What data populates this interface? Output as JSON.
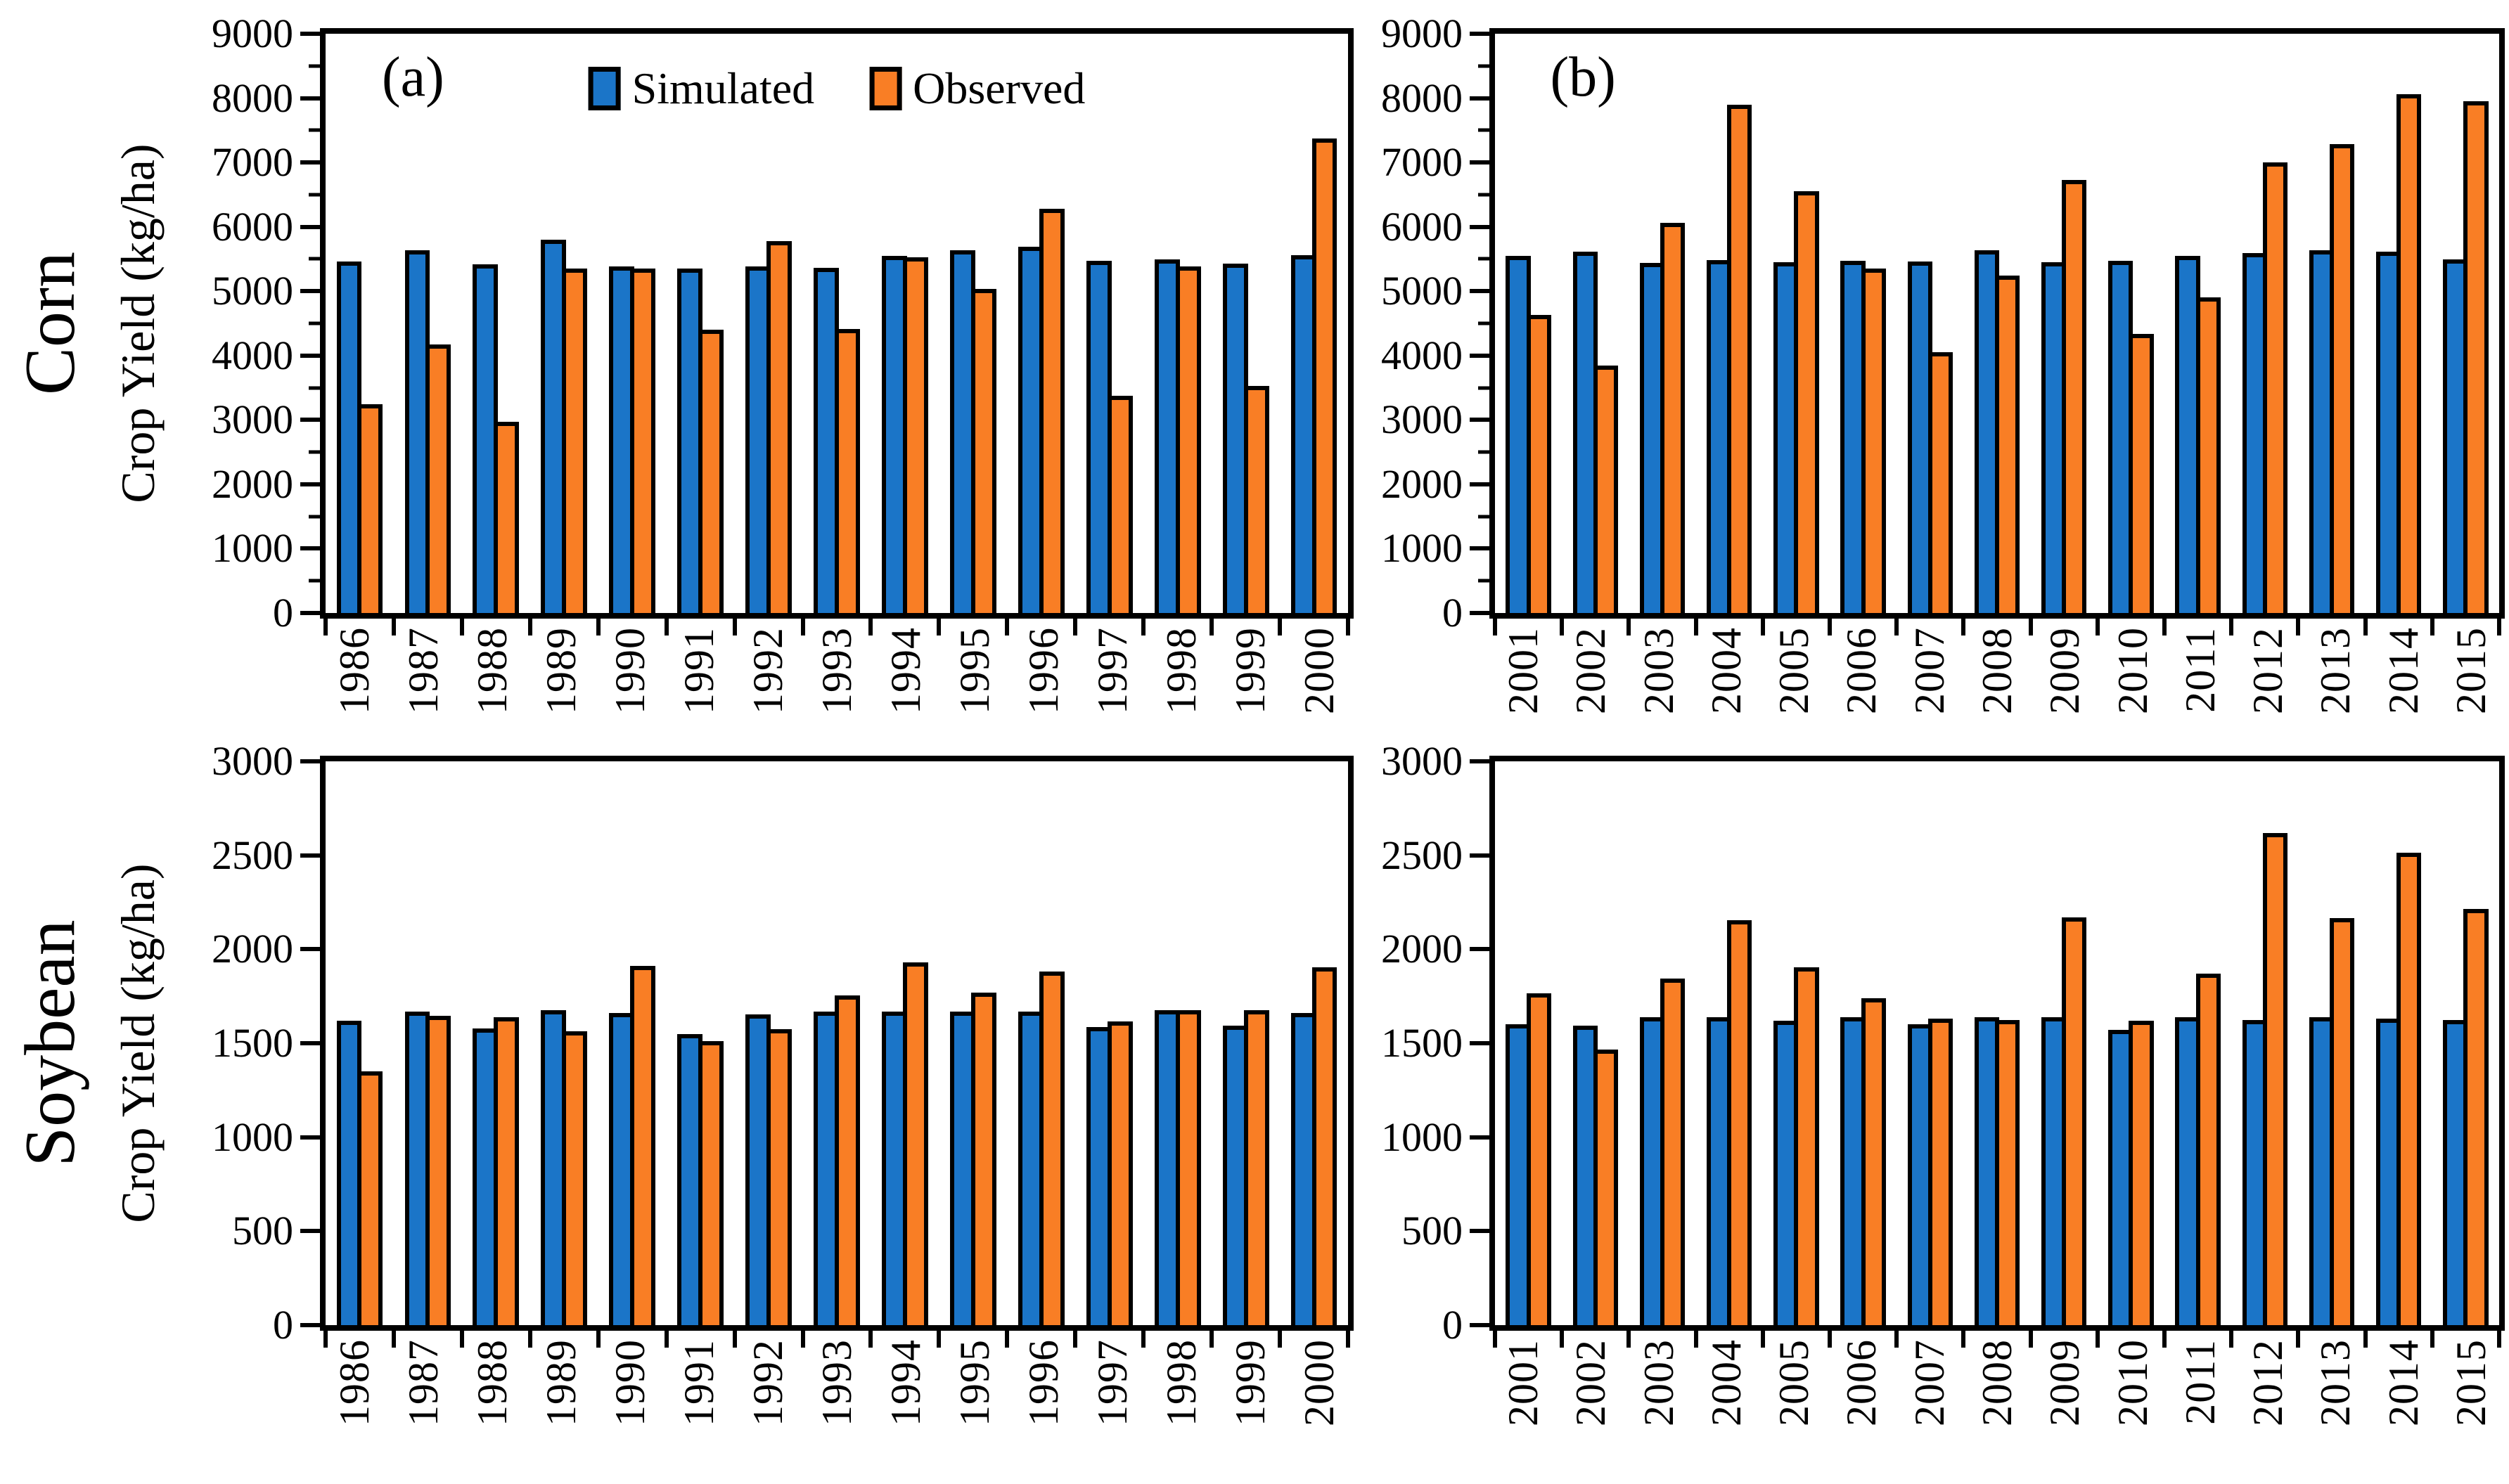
{
  "figure": {
    "legend": {
      "items": [
        {
          "label": "Simulated",
          "color": "#1B75C8"
        },
        {
          "label": "Observed",
          "color": "#F97E25"
        }
      ]
    },
    "colors": {
      "simulated": "#1B75C8",
      "observed": "#F97E25",
      "outline": "#000000"
    },
    "rows": [
      {
        "row_label": "Corn",
        "axis_label": "Crop Yield (kg/ha)",
        "ymax": 9000,
        "ytick_step": 1000,
        "minor_step": 500,
        "ytick_labels": [
          "0",
          "1000",
          "2000",
          "3000",
          "4000",
          "5000",
          "6000",
          "7000",
          "8000",
          "9000"
        ]
      },
      {
        "row_label": "Soybean",
        "axis_label": "Crop Yield (kg/ha)",
        "ymax": 3000,
        "ytick_step": 500,
        "minor_step": null,
        "ytick_labels": [
          "0",
          "500",
          "1000",
          "1500",
          "2000",
          "2500",
          "3000"
        ]
      }
    ]
  },
  "chart_data": [
    {
      "type": "bar",
      "panel_tag": "(a)",
      "title": "Corn 1986-2000",
      "xlabel": "",
      "ylabel": "Crop Yield (kg/ha)",
      "ylim": [
        0,
        9000
      ],
      "grid": false,
      "legend_position": "inside top center",
      "categories": [
        "1986",
        "1987",
        "1988",
        "1989",
        "1990",
        "1991",
        "1992",
        "1993",
        "1994",
        "1995",
        "1996",
        "1997",
        "1998",
        "1999",
        "2000"
      ],
      "series": [
        {
          "name": "Simulated",
          "values": [
            5460,
            5640,
            5420,
            5800,
            5380,
            5350,
            5390,
            5360,
            5550,
            5640,
            5690,
            5470,
            5490,
            5430,
            5560
          ]
        },
        {
          "name": "Observed",
          "values": [
            3240,
            4170,
            2970,
            5350,
            5350,
            4400,
            5780,
            4410,
            5530,
            5030,
            6280,
            3380,
            5390,
            3530,
            7370
          ]
        }
      ]
    },
    {
      "type": "bar",
      "panel_tag": "(b)",
      "title": "Corn 2001-2015",
      "xlabel": "",
      "ylabel": "Crop Yield (kg/ha)",
      "ylim": [
        0,
        9000
      ],
      "grid": false,
      "categories": [
        "2001",
        "2002",
        "2003",
        "2004",
        "2005",
        "2006",
        "2007",
        "2008",
        "2009",
        "2010",
        "2011",
        "2012",
        "2013",
        "2014",
        "2015"
      ],
      "series": [
        {
          "name": "Simulated",
          "values": [
            5550,
            5610,
            5440,
            5480,
            5450,
            5470,
            5460,
            5640,
            5450,
            5470,
            5550,
            5590,
            5640,
            5620,
            5490
          ]
        },
        {
          "name": "Observed",
          "values": [
            4630,
            3840,
            6060,
            7900,
            6550,
            5350,
            4050,
            5240,
            6730,
            4340,
            4900,
            7000,
            7290,
            8060,
            7950
          ]
        }
      ]
    },
    {
      "type": "bar",
      "panel_tag": "",
      "title": "Soybean 1986-2000",
      "xlabel": "",
      "ylabel": "Crop Yield (kg/ha)",
      "ylim": [
        0,
        3000
      ],
      "grid": false,
      "categories": [
        "1986",
        "1987",
        "1988",
        "1989",
        "1990",
        "1991",
        "1992",
        "1993",
        "1994",
        "1995",
        "1996",
        "1997",
        "1998",
        "1999",
        "2000"
      ],
      "series": [
        {
          "name": "Simulated",
          "values": [
            1620,
            1670,
            1580,
            1675,
            1660,
            1550,
            1655,
            1670,
            1670,
            1670,
            1670,
            1585,
            1675,
            1595,
            1660
          ]
        },
        {
          "name": "Observed",
          "values": [
            1350,
            1645,
            1640,
            1565,
            1910,
            1510,
            1575,
            1755,
            1930,
            1770,
            1880,
            1615,
            1675,
            1675,
            1905
          ]
        }
      ]
    },
    {
      "type": "bar",
      "panel_tag": "",
      "title": "Soybean 2001-2015",
      "xlabel": "",
      "ylabel": "Crop Yield (kg/ha)",
      "ylim": [
        0,
        3000
      ],
      "grid": false,
      "categories": [
        "2001",
        "2002",
        "2003",
        "2004",
        "2005",
        "2006",
        "2007",
        "2008",
        "2009",
        "2010",
        "2011",
        "2012",
        "2013",
        "2014",
        "2015"
      ],
      "series": [
        {
          "name": "Simulated",
          "values": [
            1600,
            1595,
            1640,
            1640,
            1620,
            1640,
            1600,
            1640,
            1640,
            1570,
            1640,
            1625,
            1640,
            1630,
            1625
          ]
        },
        {
          "name": "Observed",
          "values": [
            1765,
            1465,
            1845,
            2155,
            1905,
            1740,
            1630,
            1625,
            2170,
            1620,
            1870,
            2620,
            2165,
            2515,
            2215
          ]
        }
      ]
    }
  ]
}
